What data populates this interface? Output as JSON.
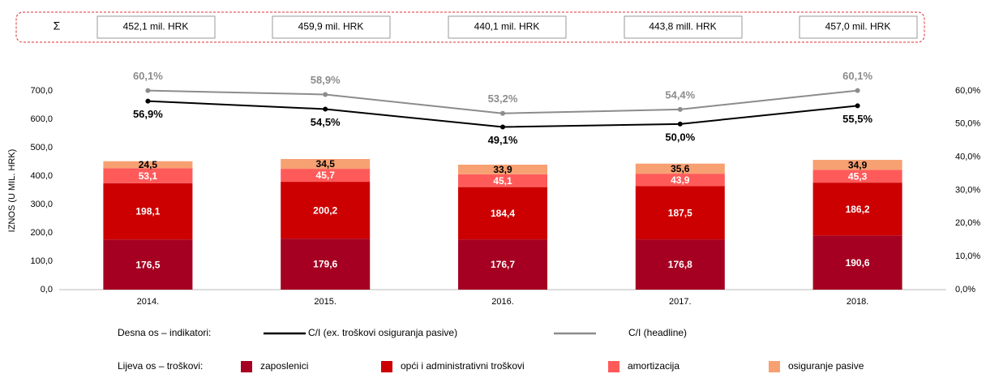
{
  "header": {
    "symbol": "Σ",
    "totals": [
      "452,1 mil. HRK",
      "459,9 mil. HRK",
      "440,1 mil. HRK",
      "443,8 mill. HRK",
      "457,0 mil. HRK"
    ]
  },
  "chart_data": {
    "type": "bar",
    "stacked": true,
    "ylabel": "IZNOS  (U MIL. HRK)",
    "categories": [
      "2014.",
      "2015.",
      "2016.",
      "2017.",
      "2018."
    ],
    "ylim": [
      0,
      700
    ],
    "yticks": [
      {
        "value": 0,
        "label": "0,0"
      },
      {
        "value": 100,
        "label": "100,0"
      },
      {
        "value": 200,
        "label": "200,0"
      },
      {
        "value": 300,
        "label": "300,0"
      },
      {
        "value": 400,
        "label": "400,0"
      },
      {
        "value": 500,
        "label": "500,0"
      },
      {
        "value": 600,
        "label": "600,0"
      },
      {
        "value": 700,
        "label": "700,0"
      }
    ],
    "y2lim": [
      0,
      60
    ],
    "y2ticks": [
      {
        "value": 0,
        "label": "0,0%"
      },
      {
        "value": 10,
        "label": "10,0%"
      },
      {
        "value": 20,
        "label": "20,0%"
      },
      {
        "value": 30,
        "label": "30,0%"
      },
      {
        "value": 40,
        "label": "40,0%"
      },
      {
        "value": 50,
        "label": "50,0%"
      },
      {
        "value": 60,
        "label": "60,0%"
      }
    ],
    "legend_titles": {
      "y2": "Desna os – indikatori:",
      "y": "Lijeva os – troškovi:"
    },
    "series": [
      {
        "name": "zaposlenici",
        "color": "#a50021",
        "label_color": "#ffffff",
        "values": [
          176.5,
          179.6,
          176.7,
          176.8,
          190.6
        ],
        "value_labels": [
          "176,5",
          "179,6",
          "176,7",
          "176,8",
          "190,6"
        ]
      },
      {
        "name": "opći i administrativni troškovi",
        "color": "#cc0000",
        "label_color": "#ffffff",
        "values": [
          198.1,
          200.2,
          184.4,
          187.5,
          186.2
        ],
        "value_labels": [
          "198,1",
          "200,2",
          "184,4",
          "187,5",
          "186,2"
        ]
      },
      {
        "name": "amortizacija",
        "color": "#ff5a5a",
        "label_color": "#ffffff",
        "values": [
          53.1,
          45.7,
          45.1,
          43.9,
          45.3
        ],
        "value_labels": [
          "53,1",
          "45,7",
          "45,1",
          "43,9",
          "45,3"
        ]
      },
      {
        "name": "osiguranje pasive",
        "color": "#f7a072",
        "label_color": "#000000",
        "values": [
          24.5,
          34.5,
          33.9,
          35.6,
          34.9
        ],
        "value_labels": [
          "24,5",
          "34,5",
          "33,9",
          "35,6",
          "34,9"
        ]
      },
      {
        "name": "C/I (ex. troškovi osiguranja pasive)",
        "type": "line",
        "axis": "y2",
        "color": "#000000",
        "label_position": "below",
        "values": [
          56.9,
          54.5,
          49.1,
          50.0,
          55.5
        ],
        "value_labels": [
          "56,9%",
          "54,5%",
          "49,1%",
          "50,0%",
          "55,5%"
        ]
      },
      {
        "name": "C/I (headline)",
        "type": "line",
        "axis": "y2",
        "color": "#8c8c8c",
        "label_position": "above",
        "values": [
          60.1,
          58.9,
          53.2,
          54.4,
          60.1
        ],
        "value_labels": [
          "60,1%",
          "58,9%",
          "53,2%",
          "54,4%",
          "60,1%"
        ]
      }
    ]
  }
}
